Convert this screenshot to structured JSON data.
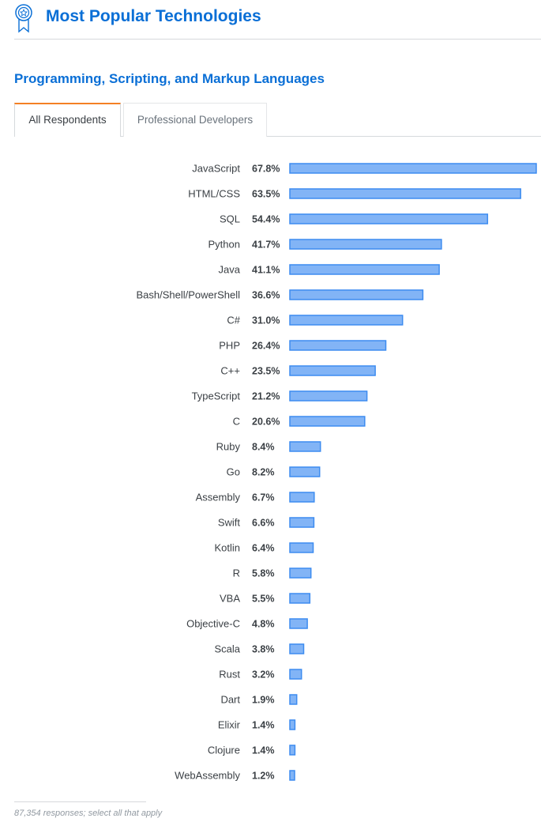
{
  "header": {
    "title": "Most Popular Technologies",
    "icon": "award-ribbon-icon"
  },
  "section": {
    "title": "Programming, Scripting, and Markup Languages"
  },
  "tabs": [
    {
      "label": "All Respondents",
      "active": true
    },
    {
      "label": "Professional Developers",
      "active": false
    }
  ],
  "colors": {
    "accent": "#0a6fd6",
    "bar_fill": "#82b4f6",
    "bar_stroke": "#3d8cf0",
    "tab_highlight": "#f48024"
  },
  "chart_data": {
    "type": "bar",
    "orientation": "horizontal",
    "title": "",
    "xlabel": "",
    "ylabel": "",
    "xlim": [
      0,
      67.8
    ],
    "grid": false,
    "value_suffix": "%",
    "categories": [
      "JavaScript",
      "HTML/CSS",
      "SQL",
      "Python",
      "Java",
      "Bash/Shell/PowerShell",
      "C#",
      "PHP",
      "C++",
      "TypeScript",
      "C",
      "Ruby",
      "Go",
      "Assembly",
      "Swift",
      "Kotlin",
      "R",
      "VBA",
      "Objective-C",
      "Scala",
      "Rust",
      "Dart",
      "Elixir",
      "Clojure",
      "WebAssembly"
    ],
    "values": [
      67.8,
      63.5,
      54.4,
      41.7,
      41.1,
      36.6,
      31.0,
      26.4,
      23.5,
      21.2,
      20.6,
      8.4,
      8.2,
      6.7,
      6.6,
      6.4,
      5.8,
      5.5,
      4.8,
      3.8,
      3.2,
      1.9,
      1.4,
      1.4,
      1.2
    ],
    "labels": [
      "67.8%",
      "63.5%",
      "54.4%",
      "41.7%",
      "41.1%",
      "36.6%",
      "31.0%",
      "26.4%",
      "23.5%",
      "21.2%",
      "20.6%",
      "8.4%",
      "8.2%",
      "6.7%",
      "6.6%",
      "6.4%",
      "5.8%",
      "5.5%",
      "4.8%",
      "3.8%",
      "3.2%",
      "1.9%",
      "1.4%",
      "1.4%",
      "1.2%"
    ]
  },
  "footer": {
    "note": "87,354 responses; select all that apply"
  }
}
